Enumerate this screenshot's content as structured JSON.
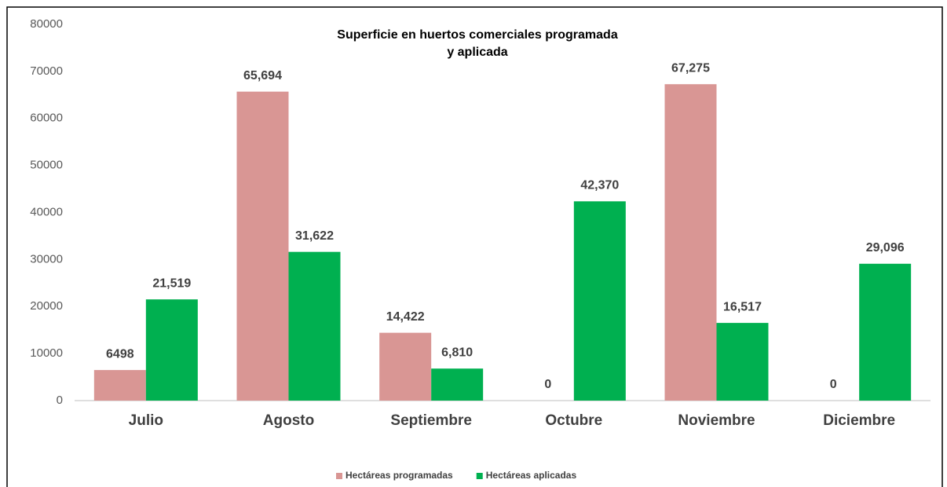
{
  "chart_data": {
    "type": "bar",
    "title": [
      "Superficie en huertos comerciales programada",
      "y aplicada"
    ],
    "categories": [
      "Julio",
      "Agosto",
      "Septiembre",
      "Octubre",
      "Noviembre",
      "Diciembre"
    ],
    "series": [
      {
        "name": "Hectáreas programadas",
        "color": "#d99694",
        "values": [
          6498,
          65694,
          14422,
          0,
          67275,
          0
        ],
        "value_labels": [
          "6498",
          "65,694",
          "14,422",
          "0",
          "67,275",
          "0"
        ]
      },
      {
        "name": "Hectáreas aplicadas",
        "color": "#00b050",
        "values": [
          21519,
          31622,
          6810,
          42370,
          16517,
          29096
        ],
        "value_labels": [
          "21,519",
          "31,622",
          "6,810",
          "42,370",
          "16,517",
          "29,096"
        ]
      }
    ],
    "ylim": [
      0,
      80000
    ],
    "yticks": [
      0,
      10000,
      20000,
      30000,
      40000,
      50000,
      60000,
      70000,
      80000
    ],
    "legend": "bottom"
  }
}
